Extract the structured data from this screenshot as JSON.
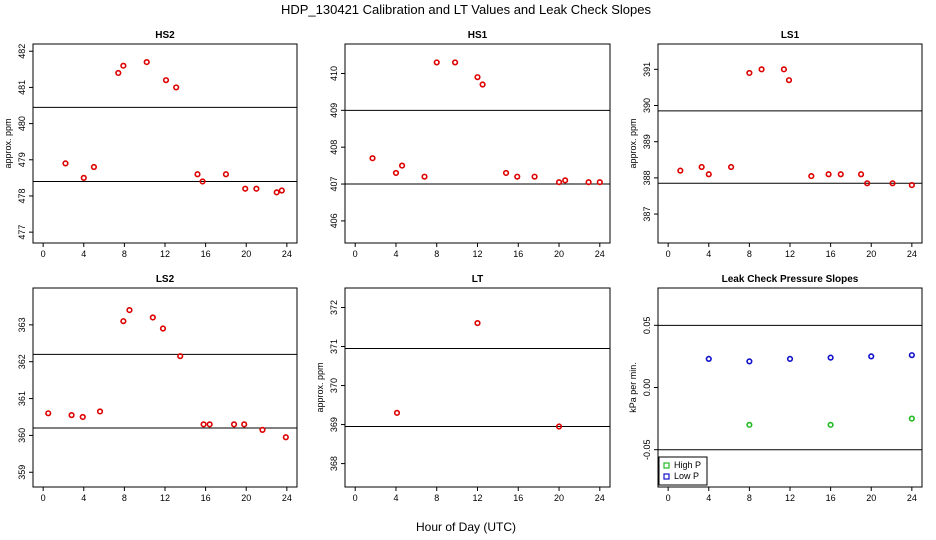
{
  "figure": {
    "title": "HDP_130421  Calibration and LT Values and Leak Check Slopes",
    "xlabel": "Hour of Day (UTC)"
  },
  "chart_data": [
    {
      "id": "hs2",
      "type": "scatter",
      "title": "HS2",
      "ylabel": "approx. ppm",
      "xlim": [
        -1,
        25
      ],
      "ylim": [
        476.7,
        482.2
      ],
      "xticks": [
        0,
        4,
        8,
        12,
        16,
        20,
        24
      ],
      "xtick_labels": [
        "0",
        "4",
        "8",
        "12",
        "16",
        "20",
        "24"
      ],
      "yticks": [
        477,
        478,
        479,
        480,
        481,
        482
      ],
      "ytick_labels": [
        "477",
        "478",
        "479",
        "480",
        "481",
        "482"
      ],
      "hlines": [
        480.45,
        478.4
      ],
      "series": [
        {
          "marker": "circle",
          "color": "#dd0000",
          "x": [
            2.2,
            4.0,
            5.0,
            7.4,
            7.9,
            10.2,
            12.1,
            13.1,
            15.2,
            15.7,
            18.0,
            19.9,
            21.0,
            23.0,
            23.5
          ],
          "y": [
            478.9,
            478.5,
            478.8,
            481.4,
            481.6,
            481.7,
            481.2,
            481.0,
            478.6,
            478.4,
            478.6,
            478.2,
            478.2,
            478.1,
            478.15
          ]
        }
      ]
    },
    {
      "id": "hs1",
      "type": "scatter",
      "title": "HS1",
      "ylabel": "",
      "xlim": [
        -1,
        25
      ],
      "ylim": [
        405.4,
        410.8
      ],
      "xticks": [
        0,
        4,
        8,
        12,
        16,
        20,
        24
      ],
      "xtick_labels": [
        "0",
        "4",
        "8",
        "12",
        "16",
        "20",
        "24"
      ],
      "yticks": [
        406,
        407,
        408,
        409,
        410
      ],
      "ytick_labels": [
        "406",
        "407",
        "408",
        "409",
        "410"
      ],
      "hlines": [
        409.0,
        407.0
      ],
      "series": [
        {
          "marker": "circle",
          "color": "#dd0000",
          "x": [
            1.7,
            4.0,
            4.6,
            6.8,
            8.0,
            9.8,
            12.0,
            12.5,
            14.8,
            15.9,
            17.6,
            20.0,
            20.6,
            22.9,
            24.0
          ],
          "y": [
            407.7,
            407.3,
            407.5,
            407.2,
            410.3,
            410.3,
            409.9,
            409.7,
            407.3,
            407.2,
            407.2,
            407.05,
            407.1,
            407.05,
            407.05
          ]
        }
      ]
    },
    {
      "id": "ls1",
      "type": "scatter",
      "title": "LS1",
      "ylabel": "approx. ppm",
      "xlim": [
        -1,
        25
      ],
      "ylim": [
        386.2,
        391.7
      ],
      "xticks": [
        0,
        4,
        8,
        12,
        16,
        20,
        24
      ],
      "xtick_labels": [
        "0",
        "4",
        "8",
        "12",
        "16",
        "20",
        "24"
      ],
      "yticks": [
        387,
        388,
        389,
        390,
        391
      ],
      "ytick_labels": [
        "387",
        "388",
        "389",
        "390",
        "391"
      ],
      "hlines": [
        389.85,
        387.85
      ],
      "series": [
        {
          "marker": "circle",
          "color": "#dd0000",
          "x": [
            1.2,
            3.3,
            4.0,
            6.2,
            8.0,
            9.2,
            11.4,
            11.9,
            14.1,
            15.8,
            17.0,
            19.0,
            19.6,
            22.1,
            24.0
          ],
          "y": [
            388.2,
            388.3,
            388.1,
            388.3,
            390.9,
            391.0,
            391.0,
            390.7,
            388.05,
            388.1,
            388.1,
            388.1,
            387.85,
            387.85,
            387.8
          ]
        }
      ]
    },
    {
      "id": "ls2",
      "type": "scatter",
      "title": "LS2",
      "ylabel": "",
      "xlim": [
        -1,
        25
      ],
      "ylim": [
        358.6,
        364.0
      ],
      "xticks": [
        0,
        4,
        8,
        12,
        16,
        20,
        24
      ],
      "xtick_labels": [
        "0",
        "4",
        "8",
        "12",
        "16",
        "20",
        "24"
      ],
      "yticks": [
        359,
        360,
        361,
        362,
        363
      ],
      "ytick_labels": [
        "359",
        "360",
        "361",
        "362",
        "363"
      ],
      "hlines": [
        362.2,
        360.2
      ],
      "series": [
        {
          "marker": "circle",
          "color": "#dd0000",
          "x": [
            0.5,
            2.8,
            3.9,
            5.6,
            7.9,
            8.5,
            10.8,
            11.8,
            13.5,
            15.8,
            16.4,
            18.8,
            19.8,
            21.6,
            23.9
          ],
          "y": [
            360.6,
            360.55,
            360.5,
            360.65,
            363.1,
            363.4,
            363.2,
            362.9,
            362.15,
            360.3,
            360.3,
            360.3,
            360.3,
            360.15,
            359.95
          ]
        }
      ]
    },
    {
      "id": "lt",
      "type": "scatter",
      "title": "LT",
      "ylabel": "approx. ppm",
      "xlim": [
        -1,
        25
      ],
      "ylim": [
        367.4,
        372.5
      ],
      "xticks": [
        0,
        4,
        8,
        12,
        16,
        20,
        24
      ],
      "xtick_labels": [
        "0",
        "4",
        "8",
        "12",
        "16",
        "20",
        "24"
      ],
      "yticks": [
        368,
        369,
        370,
        371,
        372
      ],
      "ytick_labels": [
        "368",
        "369",
        "370",
        "371",
        "372"
      ],
      "hlines": [
        370.95,
        368.95
      ],
      "series": [
        {
          "marker": "circle",
          "color": "#dd0000",
          "x": [
            4.1,
            12.0,
            20.0
          ],
          "y": [
            369.3,
            371.6,
            368.95
          ]
        }
      ]
    },
    {
      "id": "lc",
      "type": "scatter",
      "title": "Leak Check Pressure Slopes",
      "ylabel": "kPa per min.",
      "xlim": [
        -1,
        25
      ],
      "ylim": [
        -0.08,
        0.08
      ],
      "xticks": [
        0,
        4,
        8,
        12,
        16,
        20,
        24
      ],
      "xtick_labels": [
        "0",
        "4",
        "8",
        "12",
        "16",
        "20",
        "24"
      ],
      "yticks": [
        -0.05,
        0.0,
        0.05
      ],
      "ytick_labels": [
        "-0.05",
        "0.00",
        "0.05"
      ],
      "hlines": [
        0.05,
        -0.05
      ],
      "legend": {
        "placement": "bottom-left",
        "entries": [
          "High P",
          "Low P"
        ]
      },
      "series": [
        {
          "name": "High P",
          "marker": "circle",
          "color": "#22bb22",
          "x": [
            8,
            16,
            24
          ],
          "y": [
            -0.03,
            -0.03,
            -0.025
          ]
        },
        {
          "name": "Low P",
          "marker": "circle",
          "color": "#1111cc",
          "x": [
            4,
            8,
            12,
            16,
            20,
            24
          ],
          "y": [
            0.023,
            0.021,
            0.023,
            0.024,
            0.025,
            0.026
          ]
        }
      ]
    }
  ]
}
